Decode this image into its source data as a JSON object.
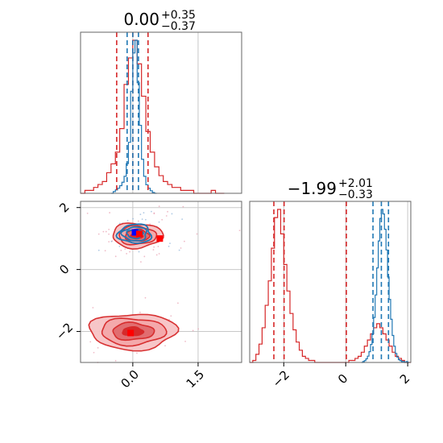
{
  "chart_data": {
    "type": "corner",
    "colors": {
      "red": "#d62728",
      "blue": "#1f77b4",
      "red_fill": "#f4a8aa",
      "grid": "#c8c8c8"
    },
    "params": [
      {
        "title": {
          "main": "0.00",
          "sup": "+0.35",
          "sub": "−0.37"
        },
        "xlim": [
          -1.2,
          2.5
        ],
        "ticks": [
          0.0,
          1.5
        ],
        "tick_labels": [
          "0.0",
          "1.5"
        ],
        "red_quantiles": [
          -0.37,
          0.0,
          0.35
        ],
        "blue_quantiles": [
          -0.13,
          0.0,
          0.13
        ]
      },
      {
        "title": {
          "main": "−1.99",
          "sup": "+2.01",
          "sub": "−0.33"
        },
        "xlim": [
          -3.1,
          2.1
        ],
        "ticks": [
          -2,
          0,
          2
        ],
        "tick_labels": [
          "−2",
          "0",
          "2"
        ],
        "red_quantiles": [
          -2.32,
          -1.99,
          0.02
        ],
        "blue_quantiles": [
          0.88,
          1.15,
          1.38
        ]
      }
    ],
    "scatter_panel": {
      "xlim": [
        -1.2,
        2.5
      ],
      "ylim": [
        -3.0,
        2.2
      ],
      "xticks": [
        0.0,
        1.5
      ],
      "xtick_labels": [
        "0.0",
        "1.5"
      ],
      "yticks": [
        2,
        0,
        -2
      ],
      "ytick_labels": [
        "2",
        "0",
        "−2"
      ],
      "red_modes": [
        {
          "x": 0.0,
          "y": -2.0,
          "sx": 0.95,
          "sy": 0.55
        },
        {
          "x": 0.1,
          "y": 1.1,
          "sx": 0.55,
          "sy": 0.38
        }
      ],
      "blue_mode": {
        "x": 0.05,
        "y": 1.15,
        "sx": 0.4,
        "sy": 0.32
      },
      "markers": [
        {
          "color": "blue",
          "x": 0.05,
          "y": 1.2
        },
        {
          "color": "red",
          "x": 0.15,
          "y": 1.15
        },
        {
          "color": "red",
          "x": 0.62,
          "y": 1.0
        },
        {
          "color": "red",
          "x": -0.05,
          "y": -2.05
        }
      ]
    },
    "hist1_red": {
      "x": [
        -1.2,
        -1.1,
        -1.0,
        -0.9,
        -0.8,
        -0.7,
        -0.6,
        -0.5,
        -0.4,
        -0.3,
        -0.2,
        -0.1,
        0.0,
        0.1,
        0.2,
        0.3,
        0.4,
        0.5,
        0.6,
        0.7,
        0.8,
        0.9,
        1.0,
        1.1,
        1.2,
        1.3,
        1.4,
        1.5,
        1.6,
        1.7,
        1.8,
        1.9,
        2.0
      ],
      "counts": [
        0,
        1,
        1,
        2,
        3,
        4,
        7,
        10,
        14,
        22,
        37,
        46,
        52,
        44,
        33,
        21,
        14,
        9,
        6,
        4,
        3,
        2,
        2,
        1,
        1,
        1,
        0,
        0,
        0,
        0,
        1,
        0,
        0
      ],
      "bin_width": 0.1
    },
    "hist1_blue": {
      "x": [
        -0.5,
        -0.45,
        -0.4,
        -0.35,
        -0.3,
        -0.25,
        -0.2,
        -0.15,
        -0.1,
        -0.05,
        0.0,
        0.05,
        0.1,
        0.15,
        0.2,
        0.25,
        0.3,
        0.35,
        0.4,
        0.45,
        0.5
      ],
      "counts": [
        0,
        2,
        4,
        6,
        9,
        13,
        20,
        35,
        60,
        120,
        165,
        180,
        130,
        80,
        40,
        20,
        10,
        6,
        3,
        1,
        0
      ],
      "bin_width": 0.05
    },
    "hist2_red": {
      "x": [
        -3.1,
        -3.0,
        -2.9,
        -2.8,
        -2.7,
        -2.6,
        -2.5,
        -2.4,
        -2.3,
        -2.2,
        -2.1,
        -2.0,
        -1.9,
        -1.8,
        -1.7,
        -1.6,
        -1.5,
        -1.4,
        -1.3,
        -1.2,
        -1.1,
        -1.0,
        -0.9,
        -0.8,
        -0.7,
        -0.6,
        -0.5,
        -0.4,
        -0.3,
        -0.2,
        -0.1,
        0.0,
        0.1,
        0.2,
        0.3,
        0.4,
        0.5,
        0.6,
        0.7,
        0.8,
        0.9,
        1.0,
        1.1,
        1.2,
        1.3,
        1.4,
        1.5,
        1.6,
        1.7,
        1.8,
        1.9,
        2.0
      ],
      "counts": [
        0,
        1,
        4,
        9,
        17,
        28,
        40,
        56,
        71,
        75,
        63,
        48,
        35,
        24,
        16,
        10,
        6,
        3,
        2,
        1,
        1,
        0,
        0,
        0,
        0,
        0,
        0,
        0,
        0,
        0,
        0,
        0,
        1,
        1,
        2,
        3,
        5,
        8,
        11,
        14,
        17,
        19,
        17,
        14,
        11,
        8,
        5,
        3,
        2,
        1,
        0,
        0
      ],
      "bin_width": 0.1
    },
    "hist2_blue": {
      "x": [
        0.5,
        0.55,
        0.6,
        0.65,
        0.7,
        0.75,
        0.8,
        0.85,
        0.9,
        0.95,
        1.0,
        1.05,
        1.1,
        1.15,
        1.2,
        1.25,
        1.3,
        1.35,
        1.4,
        1.45,
        1.5,
        1.55,
        1.6,
        1.65,
        1.7,
        1.75,
        1.8,
        1.85,
        1.9,
        1.95,
        2.0
      ],
      "counts": [
        0,
        1,
        2,
        4,
        7,
        12,
        20,
        32,
        50,
        75,
        105,
        135,
        160,
        170,
        165,
        148,
        125,
        95,
        70,
        48,
        30,
        18,
        10,
        6,
        3,
        2,
        1,
        1,
        0,
        1,
        0
      ],
      "bin_width": 0.05
    }
  }
}
